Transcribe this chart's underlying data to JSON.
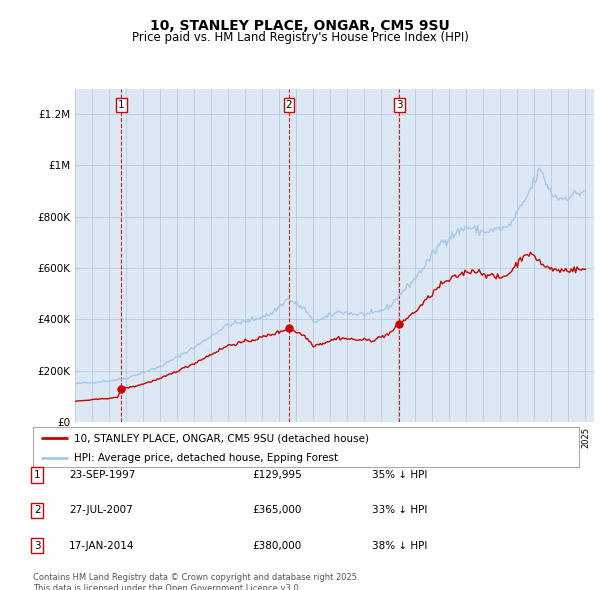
{
  "title": "10, STANLEY PLACE, ONGAR, CM5 9SU",
  "subtitle": "Price paid vs. HM Land Registry's House Price Index (HPI)",
  "legend_line1": "10, STANLEY PLACE, ONGAR, CM5 9SU (detached house)",
  "legend_line2": "HPI: Average price, detached house, Epping Forest",
  "footer": "Contains HM Land Registry data © Crown copyright and database right 2025.\nThis data is licensed under the Open Government Licence v3.0.",
  "table_entries": [
    {
      "num": "1",
      "date": "23-SEP-1997",
      "price": "£129,995",
      "hpi": "35% ↓ HPI"
    },
    {
      "num": "2",
      "date": "27-JUL-2007",
      "price": "£365,000",
      "hpi": "33% ↓ HPI"
    },
    {
      "num": "3",
      "date": "17-JAN-2014",
      "price": "£380,000",
      "hpi": "38% ↓ HPI"
    }
  ],
  "vline_years": [
    1997.72,
    2007.57,
    2014.05
  ],
  "sale_prices": [
    129995,
    365000,
    380000
  ],
  "sale_years": [
    1997.72,
    2007.57,
    2014.05
  ],
  "hpi_color": "#a8c8e8",
  "price_color": "#cc0000",
  "vline_color": "#cc0000",
  "background_color": "#ffffff",
  "plot_bg_color": "#dce9f5",
  "ylim": [
    0,
    1300000
  ],
  "xlim_left": 1995.0,
  "xlim_right": 2025.5,
  "yticks": [
    0,
    200000,
    400000,
    600000,
    800000,
    1000000,
    1200000
  ],
  "ytick_labels": [
    "£0",
    "£200K",
    "£400K",
    "£600K",
    "£800K",
    "£1M",
    "£1.2M"
  ]
}
